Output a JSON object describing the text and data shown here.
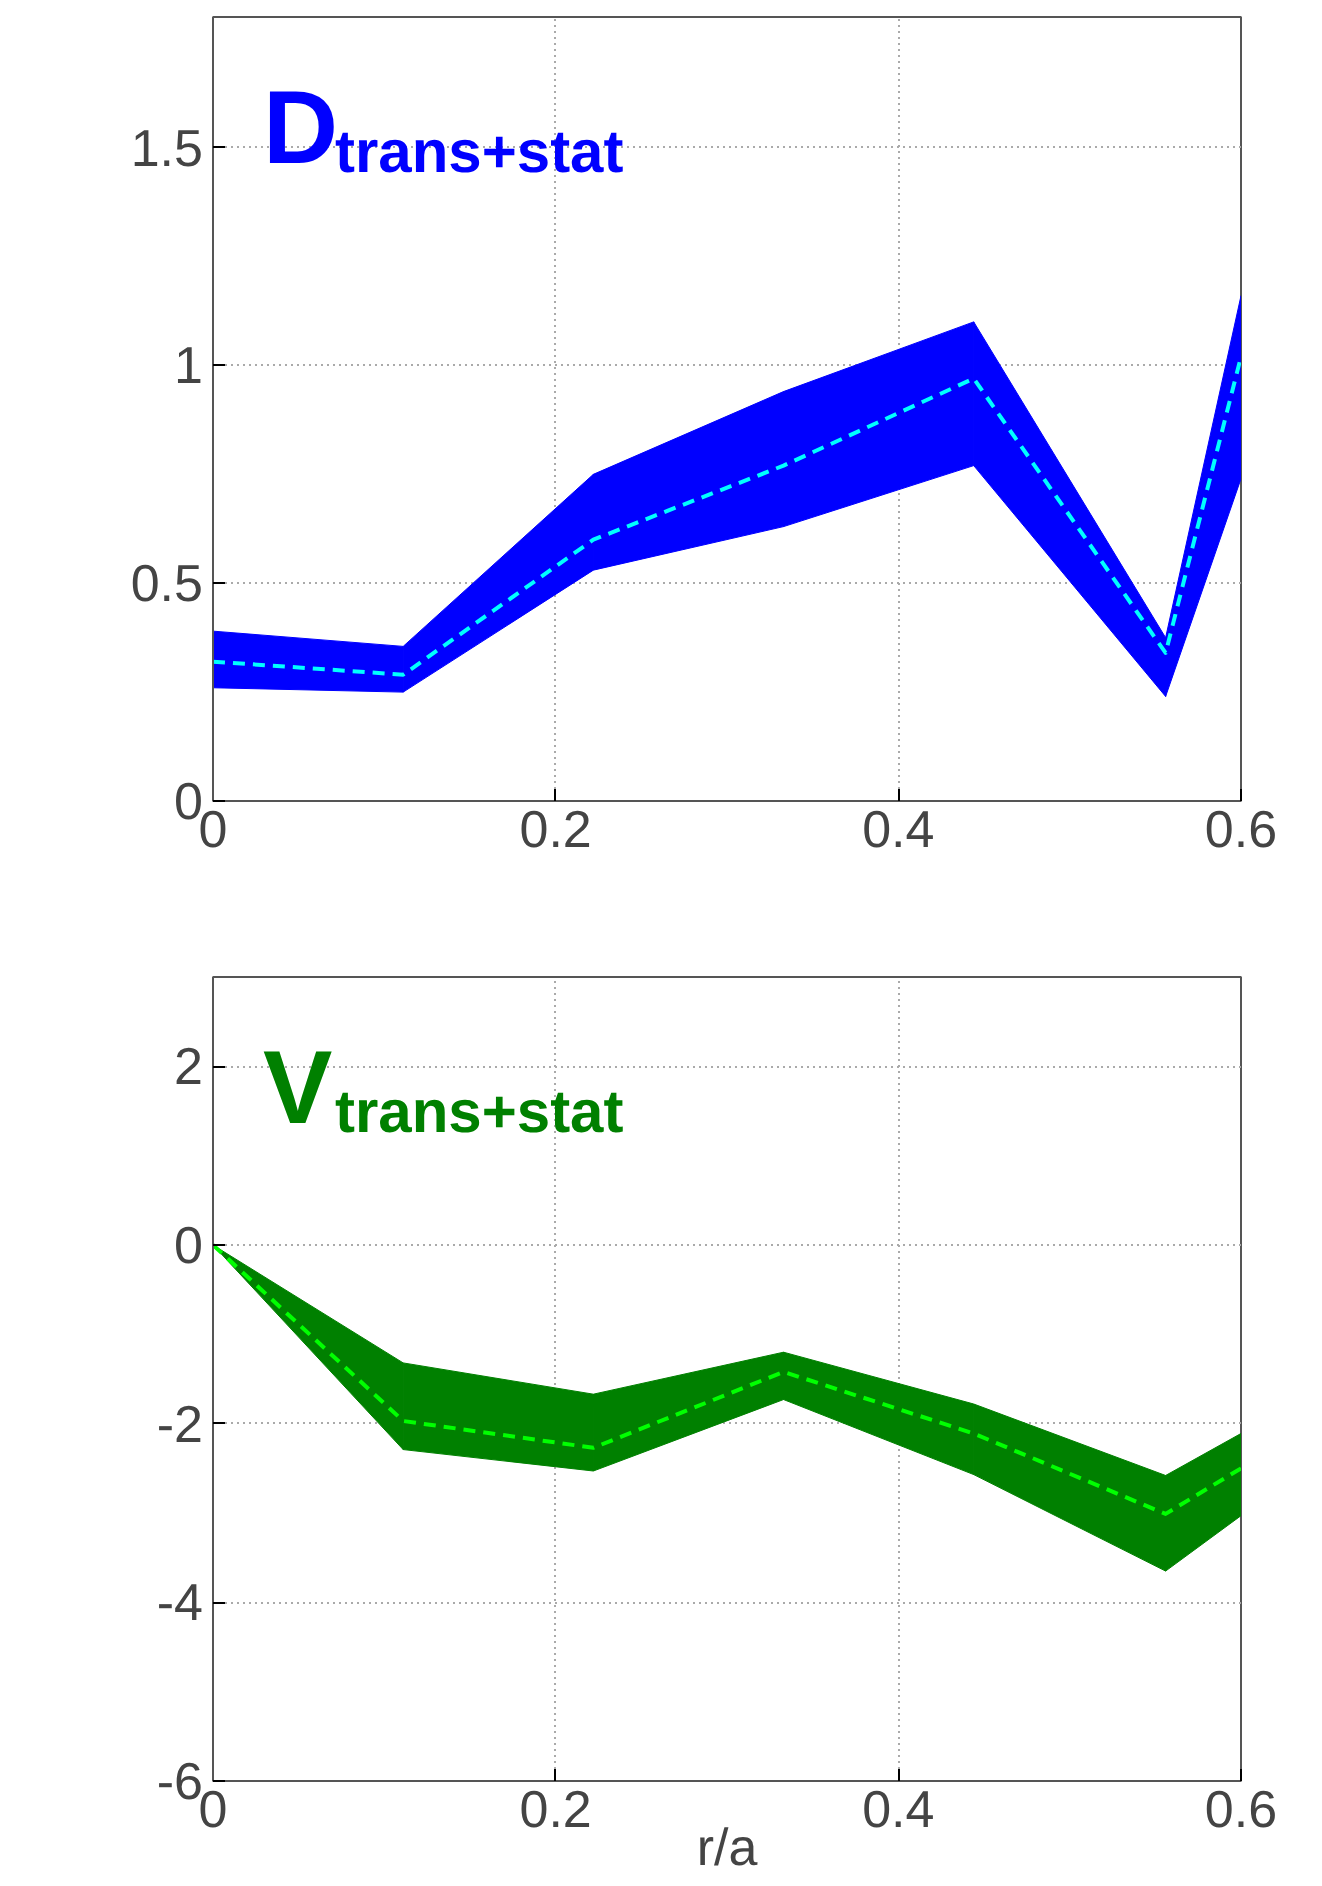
{
  "chart_data": [
    {
      "type": "line",
      "annotations": [
        "D$_{trans+stat}$"
      ],
      "x": [
        0,
        0.111,
        0.222,
        0.333,
        0.444,
        0.556,
        0.6
      ],
      "series": [
        {
          "color": "#00ffff",
          "colors": [
            "#0000ff",
            "#0000ff",
            "#0000ff",
            "#0000ff",
            "#0000ff",
            "#0000ff",
            "#0000ff"
          ],
          "values": [
            0.32,
            0.29,
            0.6,
            0.77,
            0.97,
            0.34,
            1.02
          ],
          "lower": [
            0.26,
            0.25,
            0.53,
            0.63,
            0.77,
            0.24,
            0.74
          ],
          "upper": [
            0.39,
            0.355,
            0.75,
            0.94,
            1.1,
            0.375,
            1.16
          ]
        }
      ],
      "xlim": [
        0,
        0.6
      ],
      "ylim": [
        0,
        1.8
      ],
      "xticks": [
        0,
        0.2,
        0.4,
        0.6
      ],
      "yticks": [
        0,
        0.5,
        1,
        1.5
      ],
      "grid": true,
      "line_style": "dashed"
    },
    {
      "type": "line",
      "annotations": [
        "V$_{trans+stat}$"
      ],
      "xlabel": "r/a",
      "x": [
        0,
        0.111,
        0.222,
        0.333,
        0.444,
        0.556,
        0.6
      ],
      "series": [
        {
          "color": "#00ff00",
          "colors": [
            "#008000",
            "#008000",
            "#008000",
            "#008000",
            "#008000",
            "#008000",
            "#008000"
          ],
          "values": [
            0,
            -1.97,
            -2.27,
            -1.42,
            -2.11,
            -3.01,
            -2.5
          ],
          "lower": [
            0,
            -2.29,
            -2.53,
            -1.73,
            -2.57,
            -3.65,
            -3.03
          ],
          "upper": [
            0,
            -1.32,
            -1.67,
            -1.2,
            -1.78,
            -2.58,
            -2.11
          ]
        }
      ],
      "xlim": [
        0,
        0.6
      ],
      "ylim": [
        -6,
        3
      ],
      "xticks": [
        0,
        0.2,
        0.4,
        0.6
      ],
      "yticks": [
        -6,
        -4,
        -2,
        0,
        2
      ],
      "grid": true,
      "line_style": "dashed"
    }
  ]
}
